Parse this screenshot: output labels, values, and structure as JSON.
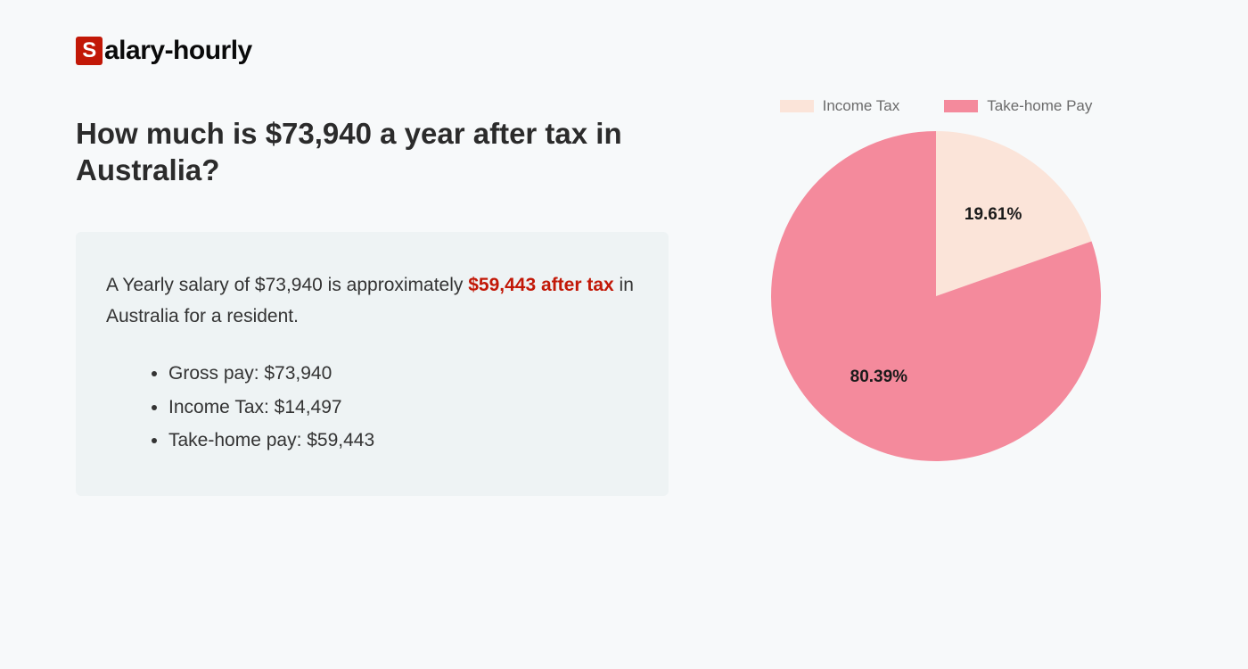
{
  "logo": {
    "badge_letter": "S",
    "rest": "alary-hourly",
    "badge_bg": "#c21807",
    "badge_fg": "#ffffff"
  },
  "title": "How much is $73,940 a year after tax in Australia?",
  "summary": {
    "pre": "A Yearly salary of $73,940 is approximately ",
    "highlight": "$59,443 after tax",
    "post": " in Australia for a resident."
  },
  "bullets": [
    "Gross pay: $73,940",
    "Income Tax: $14,497",
    "Take-home pay: $59,443"
  ],
  "chart": {
    "type": "pie",
    "radius": 185,
    "background_color": "#f7f9fa",
    "legend_text_color": "#6b6b6b",
    "label_fontsize": 19,
    "label_fontweight": 700,
    "label_color": "#1a1a1a",
    "slices": [
      {
        "name": "Income Tax",
        "value": 19.61,
        "label": "19.61%",
        "color": "#fbe4d9"
      },
      {
        "name": "Take-home Pay",
        "value": 80.39,
        "label": "80.39%",
        "color": "#f48a9c"
      }
    ],
    "start_angle_deg": -90
  },
  "summary_box_bg": "#eef3f4",
  "page_bg": "#f7f9fa"
}
